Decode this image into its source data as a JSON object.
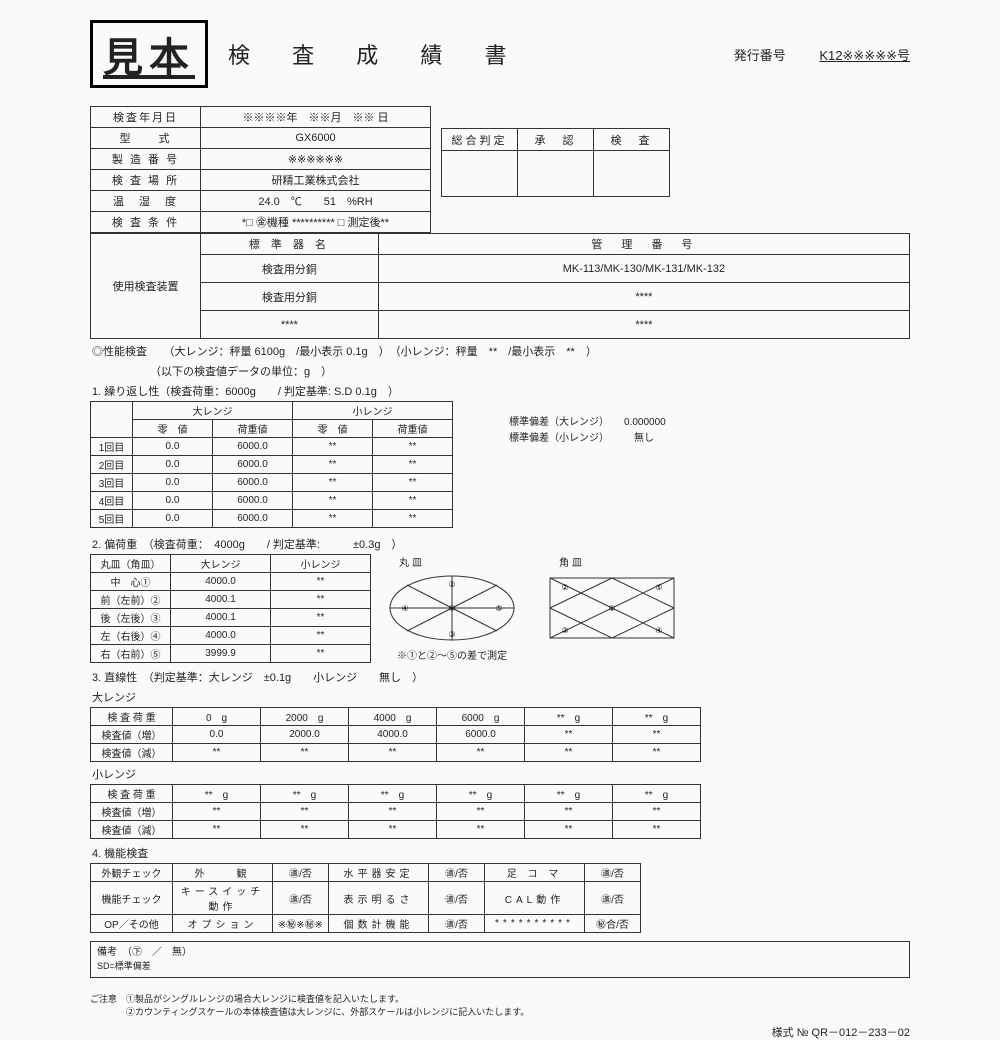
{
  "top": {
    "mihon": "見本",
    "title": "検 査 成 績 書",
    "issue_label": "発行番号",
    "issue_no": "K12※※※※※号"
  },
  "header": {
    "rows": [
      [
        "検査年月日",
        "※※※※年　※※月　※※ 日"
      ],
      [
        "型　　式",
        "GX6000"
      ],
      [
        "製 造 番 号",
        "※※※※※※"
      ],
      [
        "検 査 場 所",
        "研精工業株式会社"
      ],
      [
        "温　湿　度",
        "24.0　℃　　51　%RH"
      ],
      [
        "検 査 条 件",
        "*□ ㊎機種 ********** □ 測定後**"
      ]
    ]
  },
  "judgement": {
    "cols": [
      "総合判定",
      "承　認",
      "検　査"
    ]
  },
  "equipment": {
    "label": "使用検査装置",
    "head": [
      "標 準 器 名",
      "管　理　番　号"
    ],
    "rows": [
      [
        "検査用分銅",
        "MK-113/MK-130/MK-131/MK-132"
      ],
      [
        "検査用分銅",
        "****"
      ],
      [
        "****",
        "****"
      ]
    ]
  },
  "perf_line": "◎性能検査　　（大レンジ：秤量 6100g　/最小表示 0.1g　）　（小レンジ：秤量　**　/最小表示　**　）",
  "unit_line": "（以下の検査値データの単位：g　）",
  "sec1": {
    "title": "1. 繰り返し性（検査荷重：6000g　　/ 判定基準: S.D 0.1g　）",
    "groups": [
      "大レンジ",
      "小レンジ"
    ],
    "cols": [
      "",
      "零　値",
      "荷重値",
      "零　値",
      "荷重値"
    ],
    "rows": [
      [
        "1回目",
        "0.0",
        "6000.0",
        "**",
        "**"
      ],
      [
        "2回目",
        "0.0",
        "6000.0",
        "**",
        "**"
      ],
      [
        "3回目",
        "0.0",
        "6000.0",
        "**",
        "**"
      ],
      [
        "4回目",
        "0.0",
        "6000.0",
        "**",
        "**"
      ],
      [
        "5回目",
        "0.0",
        "6000.0",
        "**",
        "**"
      ]
    ],
    "sd": [
      "標準偏差（大レンジ）　　0.000000",
      "標準偏差（小レンジ）　　　無し"
    ]
  },
  "sec2": {
    "title": "2. 偏荷重　（検査荷重：　4000g　　/ 判定基準:　　　±0.3g　）",
    "cols": [
      "丸皿（角皿）",
      "大レンジ",
      "小レンジ"
    ],
    "rows": [
      [
        "中　心①",
        "4000.0",
        "**"
      ],
      [
        "前（左前）②",
        "4000.1",
        "**"
      ],
      [
        "後（左後）③",
        "4000.1",
        "**"
      ],
      [
        "左（右後）④",
        "4000.0",
        "**"
      ],
      [
        "右（右前）⑤",
        "3999.9",
        "**"
      ]
    ],
    "pan_lbls": [
      "丸皿",
      "角皿"
    ],
    "note": "※①と②～⑤の差で測定"
  },
  "sec3": {
    "title": "3. 直線性　（判定基準：大レンジ　±0.1g　　小レンジ　　無し　）",
    "big_label": "大レンジ",
    "big": {
      "head": [
        "検 査 荷 重",
        "0　g",
        "2000　g",
        "4000　g",
        "6000　g",
        "**　g",
        "**　g"
      ],
      "rows": [
        [
          "検査値（増）",
          "0.0",
          "2000.0",
          "4000.0",
          "6000.0",
          "**",
          "**"
        ],
        [
          "検査値（減）",
          "**",
          "**",
          "**",
          "**",
          "**",
          "**"
        ]
      ]
    },
    "small_label": "小レンジ",
    "small": {
      "head": [
        "検 査 荷 重",
        "**　g",
        "**　g",
        "**　g",
        "**　g",
        "**　g",
        "**　g"
      ],
      "rows": [
        [
          "検査値（増）",
          "**",
          "**",
          "**",
          "**",
          "**",
          "**"
        ],
        [
          "検査値（減）",
          "**",
          "**",
          "**",
          "**",
          "**",
          "**"
        ]
      ]
    }
  },
  "sec4": {
    "title": "4. 機能検査",
    "rows": [
      [
        "外観チェック",
        "外　　観",
        "㊜/否",
        "水平器安定",
        "㊜/否",
        "足 コ マ",
        "㊜/否"
      ],
      [
        "機能チェック",
        "キースイッチ動作",
        "㊜/否",
        "表示明るさ",
        "㊜/否",
        "CAL動作",
        "㊜/否"
      ],
      [
        "OP／その他",
        "オプション",
        "※㊙※㊙※",
        "個数計機能",
        "㊜/否",
        "**********",
        "㊙合/否"
      ]
    ]
  },
  "remarks": {
    "line1": "備考　（㊦　／　無）",
    "line2": "SD=標準偏差"
  },
  "notices": [
    "ご注意　①製品がシングルレンジの場合大レンジに検査値を記入いたします。",
    "　　　　②カウンティングスケールの本体検査値は大レンジに、外部スケールは小レンジに記入いたします。"
  ],
  "form_no": "様式 № QR－012－233－02"
}
